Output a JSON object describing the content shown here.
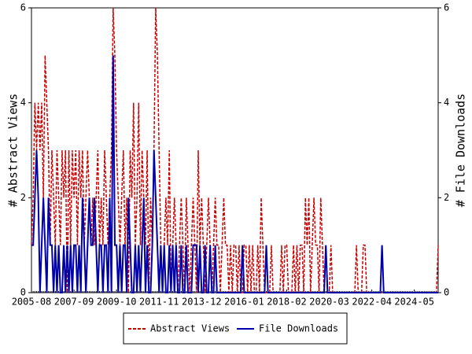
{
  "chart_data": {
    "type": "line",
    "y_label": "# Abstract Views",
    "y2_label": "# File Downloads",
    "categories": [
      "2005-08",
      null,
      null,
      null,
      null,
      null,
      null,
      null,
      null,
      null,
      null,
      null,
      null,
      null,
      null,
      null,
      null,
      null,
      null,
      null,
      null,
      null,
      null,
      null,
      null,
      "2007-09",
      null,
      null,
      null,
      null,
      null,
      null,
      null,
      null,
      null,
      null,
      null,
      null,
      null,
      null,
      null,
      null,
      null,
      null,
      null,
      null,
      null,
      null,
      null,
      null,
      "2009-10",
      null,
      null,
      null,
      null,
      null,
      null,
      null,
      null,
      null,
      null,
      null,
      null,
      null,
      null,
      null,
      null,
      null,
      null,
      null,
      null,
      null,
      null,
      null,
      null,
      "2011-11",
      null,
      null,
      null,
      null,
      null,
      null,
      null,
      null,
      null,
      null,
      null,
      null,
      null,
      null,
      null,
      null,
      null,
      null,
      null,
      null,
      null,
      null,
      null,
      null,
      "2013-12",
      null,
      null,
      null,
      null,
      null,
      null,
      null,
      null,
      null,
      null,
      null,
      null,
      null,
      null,
      null,
      null,
      null,
      null,
      null,
      null,
      null,
      null,
      null,
      null,
      "2016-01",
      null,
      null,
      null,
      null,
      null,
      null,
      null,
      null,
      null,
      null,
      null,
      null,
      null,
      null,
      null,
      null,
      null,
      null,
      null,
      null,
      null,
      null,
      null,
      null,
      "2018-02",
      null,
      null,
      null,
      null,
      null,
      null,
      null,
      null,
      null,
      null,
      null,
      null,
      null,
      null,
      null,
      null,
      null,
      null,
      null,
      null,
      null,
      null,
      null,
      null,
      "2020-03",
      null,
      null,
      null,
      null,
      null,
      null,
      null,
      null,
      null,
      null,
      null,
      null,
      null,
      null,
      null,
      null,
      null,
      null,
      null,
      null,
      null,
      null,
      null,
      null,
      "2022-04",
      null,
      null,
      null,
      null,
      null,
      null,
      null,
      null,
      null,
      null,
      null,
      null,
      null,
      null,
      null,
      null,
      null,
      null,
      null,
      null,
      null,
      null,
      null,
      null,
      "2024-05",
      null,
      null,
      null,
      null,
      null,
      null,
      null,
      null,
      null,
      null,
      null,
      null,
      null,
      null
    ],
    "series": [
      {
        "name": "Abstract Views",
        "color": "#cc0000",
        "dash": true,
        "values": [
          1,
          2,
          4,
          3,
          4,
          3,
          4,
          2,
          5,
          4,
          3,
          1,
          3,
          2,
          1,
          3,
          2,
          1,
          3,
          2,
          3,
          0,
          3,
          1,
          3,
          2,
          3,
          1,
          3,
          2,
          3,
          1,
          2,
          3,
          2,
          1,
          2,
          1,
          2,
          3,
          1,
          2,
          1,
          3,
          2,
          1,
          2,
          3,
          6,
          5,
          3,
          2,
          1,
          2,
          3,
          1,
          2,
          0,
          3,
          2,
          4,
          1,
          2,
          4,
          1,
          3,
          2,
          1,
          3,
          0,
          2,
          1,
          3,
          6,
          5,
          3,
          1,
          0,
          1,
          2,
          1,
          3,
          0,
          1,
          2,
          1,
          0,
          1,
          2,
          1,
          0,
          2,
          1,
          0,
          1,
          2,
          1,
          0,
          3,
          1,
          2,
          1,
          0,
          1,
          2,
          1,
          0,
          1,
          2,
          1,
          1,
          0,
          1,
          2,
          1,
          1,
          0,
          1,
          0,
          1,
          1,
          0,
          1,
          0,
          0,
          1,
          1,
          0,
          1,
          0,
          1,
          0,
          0,
          1,
          0,
          2,
          1,
          0,
          0,
          0,
          0,
          1,
          0,
          0,
          0,
          0,
          0,
          1,
          0,
          1,
          1,
          0,
          0,
          0,
          1,
          0,
          1,
          0,
          1,
          1,
          0,
          2,
          1,
          2,
          0,
          1,
          2,
          1,
          1,
          0,
          2,
          1,
          0,
          1,
          0,
          0,
          1,
          0,
          0,
          0,
          0,
          0,
          0,
          0,
          0,
          0,
          0,
          0,
          0,
          0,
          0,
          1,
          0,
          0,
          0,
          1,
          1,
          0,
          0,
          0,
          0,
          0,
          0,
          0,
          0,
          0,
          0,
          0,
          0,
          0,
          0,
          0,
          0,
          0,
          0,
          0,
          0,
          0,
          0,
          0,
          0,
          0,
          0,
          0,
          0,
          0,
          0,
          0,
          0,
          0,
          0,
          0,
          0,
          0,
          0,
          0,
          0,
          0,
          0,
          1
        ]
      },
      {
        "name": "File Downloads",
        "color": "#0000aa",
        "axis": "y2",
        "values": [
          1,
          1,
          2,
          3,
          2,
          0,
          1,
          2,
          1,
          0,
          2,
          1,
          1,
          0,
          1,
          0,
          1,
          0,
          0,
          1,
          0,
          1,
          0,
          1,
          0,
          1,
          1,
          0,
          1,
          0,
          2,
          1,
          0,
          1,
          2,
          1,
          1,
          2,
          1,
          0,
          1,
          1,
          0,
          1,
          1,
          0,
          2,
          0,
          5,
          1,
          1,
          0,
          1,
          0,
          1,
          1,
          0,
          2,
          1,
          0,
          0,
          1,
          0,
          1,
          0,
          1,
          2,
          0,
          1,
          0,
          0,
          1,
          3,
          2,
          1,
          0,
          1,
          0,
          1,
          0,
          0,
          1,
          0,
          1,
          0,
          1,
          0,
          0,
          1,
          0,
          0,
          1,
          0,
          0,
          0,
          1,
          1,
          1,
          0,
          1,
          0,
          0,
          1,
          0,
          0,
          1,
          0,
          0,
          1,
          0,
          0,
          0,
          0,
          0,
          0,
          0,
          0,
          0,
          0,
          0,
          0,
          0,
          0,
          0,
          1,
          0,
          0,
          0,
          0,
          0,
          0,
          0,
          0,
          0,
          0,
          0,
          0,
          0,
          1,
          0,
          0,
          0,
          0,
          0,
          0,
          0,
          0,
          0,
          0,
          0,
          0,
          0,
          0,
          0,
          0,
          0,
          0,
          0,
          0,
          0,
          0,
          0,
          0,
          0,
          0,
          0,
          0,
          0,
          0,
          0,
          0,
          0,
          0,
          1,
          0,
          0,
          0,
          0,
          0,
          0,
          0,
          0,
          0,
          0,
          0,
          0,
          0,
          0,
          0,
          0,
          0,
          0,
          0,
          0,
          0,
          0,
          0,
          0,
          0,
          0,
          0,
          0,
          0,
          0,
          0,
          0,
          1,
          0,
          0,
          0,
          0,
          0,
          0,
          0,
          0,
          0,
          0,
          0,
          0,
          0,
          0,
          0,
          0,
          0,
          0,
          0,
          0,
          0,
          0,
          0,
          0,
          0,
          0,
          0,
          0,
          0,
          0,
          0,
          0,
          0
        ]
      }
    ],
    "ylim": [
      0,
      6
    ],
    "yticks": [
      0,
      2,
      4,
      6
    ],
    "y2lim": [
      0,
      6
    ],
    "y2ticks": [
      0,
      2,
      4,
      6
    ],
    "legend": "bottom"
  }
}
